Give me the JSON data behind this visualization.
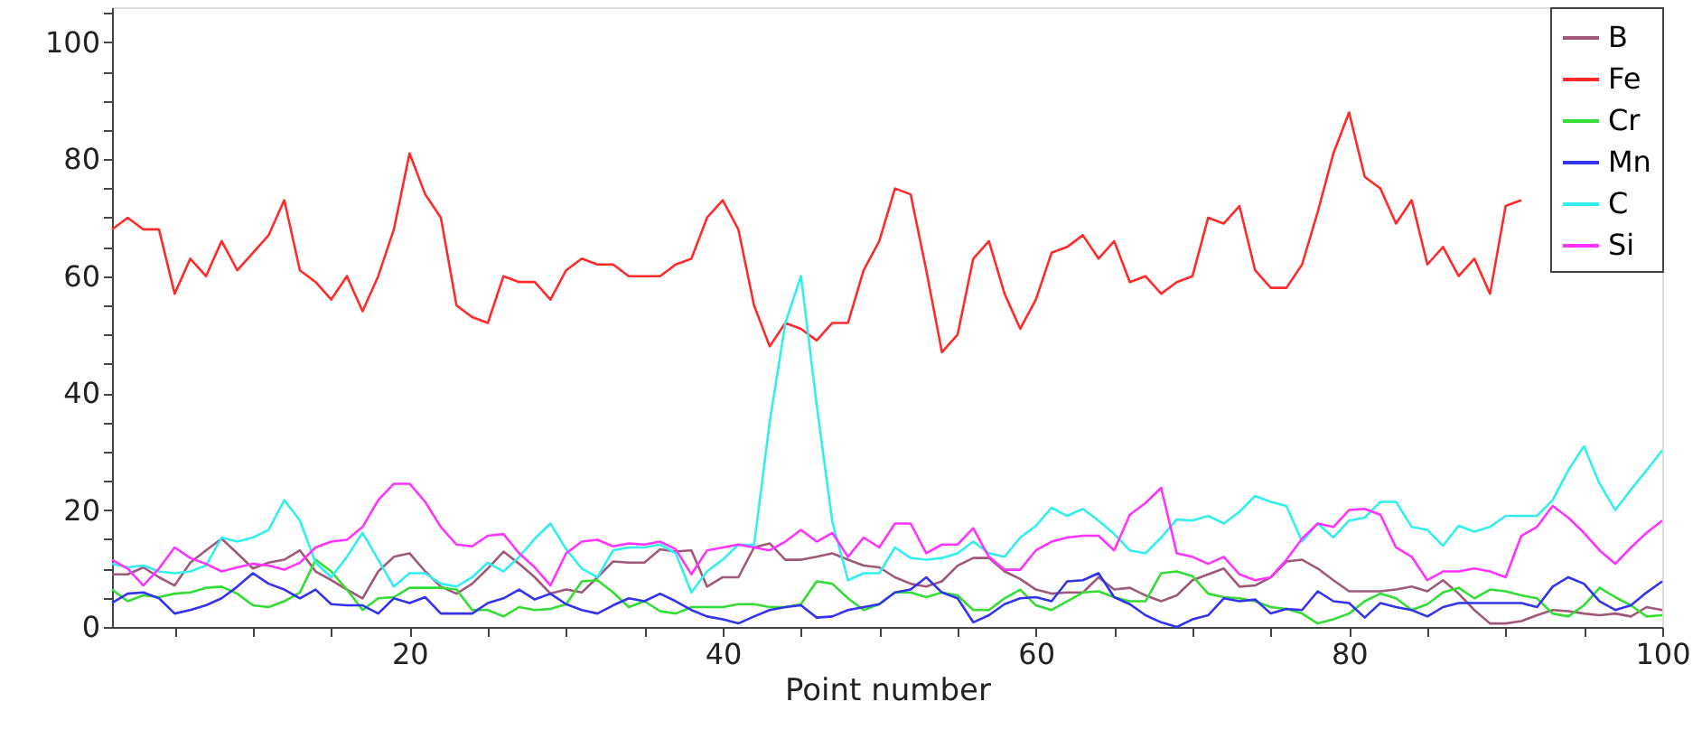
{
  "chart_data": {
    "type": "line",
    "xlabel": "Point number",
    "x": [
      1,
      2,
      3,
      4,
      5,
      6,
      7,
      8,
      9,
      10,
      11,
      12,
      13,
      14,
      15,
      16,
      17,
      18,
      19,
      20,
      21,
      22,
      23,
      24,
      25,
      26,
      27,
      28,
      29,
      30,
      31,
      32,
      33,
      34,
      35,
      36,
      37,
      38,
      39,
      40,
      41,
      42,
      43,
      44,
      45,
      46,
      47,
      48,
      49,
      50,
      51,
      52,
      53,
      54,
      55,
      56,
      57,
      58,
      59,
      60,
      61,
      62,
      63,
      64,
      65,
      66,
      67,
      68,
      69,
      70,
      71,
      72,
      73,
      74,
      75,
      76,
      77,
      78,
      79,
      80,
      81,
      82,
      83,
      84,
      85,
      86,
      87,
      88,
      89,
      90,
      91,
      92,
      93,
      94,
      95,
      96,
      97,
      98,
      99,
      100
    ],
    "xlim": [
      1,
      100
    ],
    "xticks": [
      {
        "value": 5,
        "label": null
      },
      {
        "value": 10,
        "label": null
      },
      {
        "value": 15,
        "label": null
      },
      20,
      {
        "value": 25,
        "label": null
      },
      {
        "value": 30,
        "label": null
      },
      {
        "value": 35,
        "label": null
      },
      40,
      {
        "value": 45,
        "label": null
      },
      {
        "value": 50,
        "label": null
      },
      {
        "value": 55,
        "label": null
      },
      60,
      {
        "value": 65,
        "label": null
      },
      {
        "value": 70,
        "label": null
      },
      {
        "value": 75,
        "label": null
      },
      80,
      {
        "value": 85,
        "label": null
      },
      {
        "value": 90,
        "label": null
      },
      {
        "value": 95,
        "label": null
      },
      100
    ],
    "ylim": [
      0,
      106
    ],
    "yticks": [
      0,
      {
        "value": 5,
        "label": null
      },
      {
        "value": 10,
        "label": null
      },
      {
        "value": 15,
        "label": null
      },
      20,
      {
        "value": 25,
        "label": null
      },
      {
        "value": 30,
        "label": null
      },
      {
        "value": 35,
        "label": null
      },
      40,
      {
        "value": 45,
        "label": null
      },
      {
        "value": 50,
        "label": null
      },
      {
        "value": 55,
        "label": null
      },
      60,
      {
        "value": 65,
        "label": null
      },
      {
        "value": 70,
        "label": null
      },
      {
        "value": 75,
        "label": null
      },
      80,
      {
        "value": 85,
        "label": null
      },
      {
        "value": 90,
        "label": null
      },
      {
        "value": 95,
        "label": null
      },
      100,
      {
        "value": 105,
        "label": null
      }
    ],
    "grid": false,
    "legend": "top right",
    "marker": "none",
    "line_style": "solid",
    "series": [
      {
        "name": "B",
        "color": "#a0587a",
        "values": [
          9,
          9,
          10.2,
          8.5,
          7.1,
          11,
          13.1,
          15.1,
          12.6,
          10,
          11,
          11.5,
          13.1,
          9.5,
          8,
          6.4,
          4.9,
          9.5,
          12,
          12.6,
          9.5,
          6.9,
          5.7,
          7.4,
          10,
          12.9,
          10.8,
          8.5,
          5.7,
          6.4,
          5.9,
          8.5,
          11.2,
          11,
          11,
          13.3,
          12.9,
          13.1,
          6.9,
          8.5,
          8.5,
          13.6,
          14.3,
          11.5,
          11.5,
          12,
          12.6,
          11.5,
          10.5,
          10.2,
          8.5,
          7.4,
          6.9,
          7.8,
          10.5,
          11.8,
          11.8,
          9.5,
          8.2,
          6.4,
          5.7,
          5.9,
          5.9,
          8.5,
          6.4,
          6.7,
          5.4,
          4.4,
          5.4,
          8,
          9,
          10,
          6.9,
          7.1,
          8.5,
          11.2,
          11.5,
          10,
          8,
          6.1,
          6.1,
          6.1,
          6.4,
          6.9,
          6.1,
          8,
          5.7,
          2.9,
          0.6,
          0.6,
          1,
          2,
          2.9,
          2.7,
          2.3,
          2,
          2.3,
          1.8,
          3.4,
          2.9
        ]
      },
      {
        "name": "Fe",
        "color": "#ff2a2a",
        "values": [
          68,
          70,
          68,
          68,
          57,
          63,
          60,
          66,
          61,
          64,
          67,
          73,
          61,
          59,
          56,
          60,
          54,
          60,
          68,
          81,
          74,
          70,
          55,
          53,
          52,
          60,
          59,
          59,
          56,
          61,
          63,
          62,
          62,
          60,
          60,
          60,
          62,
          63,
          70,
          73,
          68,
          55,
          48,
          52,
          51,
          49,
          52,
          52,
          61,
          66,
          75,
          74,
          61,
          47,
          50,
          63,
          66,
          57,
          51,
          56,
          64,
          65,
          67,
          63,
          66,
          59,
          60,
          57,
          59,
          60,
          70,
          69,
          72,
          61,
          58,
          58,
          62,
          71,
          81,
          88,
          77,
          75,
          69,
          73,
          62,
          65,
          60,
          63,
          57,
          72,
          73,
          null,
          null,
          null,
          null,
          null,
          null,
          null,
          null,
          null
        ]
      },
      {
        "name": "Cr",
        "color": "#33dd33",
        "values": [
          6.4,
          4.4,
          5.4,
          5.1,
          5.7,
          5.9,
          6.7,
          6.9,
          5.7,
          3.7,
          3.4,
          4.4,
          5.9,
          11.5,
          9.5,
          6.4,
          2.9,
          4.9,
          5.1,
          6.7,
          6.7,
          6.7,
          6.4,
          2.9,
          2.9,
          1.8,
          3.4,
          2.9,
          3.1,
          3.9,
          7.8,
          8,
          5.9,
          3.4,
          4.4,
          2.7,
          2.3,
          3.4,
          3.4,
          3.4,
          3.9,
          3.9,
          3.4,
          3.4,
          3.9,
          7.8,
          7.4,
          4.9,
          2.9,
          3.9,
          5.9,
          5.9,
          5.1,
          5.9,
          5.4,
          2.9,
          2.9,
          4.9,
          6.4,
          3.7,
          2.9,
          4.4,
          5.9,
          6.1,
          5.1,
          4.4,
          4.4,
          9.2,
          9.5,
          8.7,
          5.7,
          5.1,
          4.9,
          4.4,
          3.4,
          3.1,
          2.3,
          0.6,
          1.3,
          2.3,
          4.4,
          5.7,
          4.9,
          2.9,
          3.9,
          5.9,
          6.7,
          4.9,
          6.4,
          6.1,
          5.4,
          4.9,
          2.3,
          1.8,
          3.7,
          6.7,
          5.1,
          3.7,
          1.8,
          2
        ]
      },
      {
        "name": "Mn",
        "color": "#3333ee",
        "values": [
          4.1,
          5.7,
          5.9,
          4.9,
          2.3,
          2.9,
          3.7,
          4.9,
          6.9,
          9.2,
          7.4,
          6.4,
          4.9,
          6.4,
          3.9,
          3.7,
          3.7,
          2.3,
          4.9,
          4.1,
          5.1,
          2.3,
          2.3,
          2.3,
          4.1,
          4.9,
          6.4,
          4.7,
          5.7,
          3.9,
          2.9,
          2.3,
          3.7,
          4.9,
          4.4,
          5.7,
          4.4,
          2.9,
          1.8,
          1.3,
          0.6,
          1.8,
          2.9,
          3.4,
          3.7,
          1.6,
          1.8,
          2.9,
          3.4,
          3.9,
          5.9,
          6.4,
          8.5,
          5.9,
          4.9,
          0.8,
          2,
          3.9,
          4.9,
          5.1,
          4.4,
          7.8,
          8,
          9.2,
          5.1,
          3.9,
          2,
          0.8,
          0,
          1.3,
          2,
          4.9,
          4.4,
          4.7,
          2.3,
          3.1,
          2.9,
          6.1,
          4.4,
          4.1,
          1.6,
          4.1,
          3.4,
          2.9,
          1.8,
          3.4,
          4.1,
          4.1,
          4.1,
          4.1,
          4.1,
          3.4,
          6.9,
          8.5,
          7.4,
          4.4,
          2.9,
          3.7,
          5.9,
          7.8
        ]
      },
      {
        "name": "C",
        "color": "#33eeee",
        "values": [
          10.8,
          10.2,
          10.5,
          9.5,
          9.2,
          9.5,
          10.5,
          15.3,
          14.6,
          15.3,
          16.6,
          21.7,
          18.2,
          11,
          8.5,
          12,
          16.1,
          11.5,
          6.9,
          9.2,
          9.2,
          7.4,
          6.9,
          8.5,
          11,
          9.5,
          12,
          15.1,
          17.7,
          13.3,
          10,
          8.5,
          13.1,
          13.6,
          13.6,
          14.1,
          12.6,
          5.9,
          9.5,
          11.5,
          14.1,
          14,
          35,
          52,
          60,
          38,
          18,
          8,
          9.2,
          9.2,
          13.6,
          11.8,
          11.5,
          11.8,
          12.6,
          14.6,
          12.6,
          12,
          15.3,
          17.3,
          20.4,
          19,
          20.2,
          18.2,
          15.9,
          13.1,
          12.6,
          15.3,
          18.4,
          18.2,
          19,
          17.7,
          19.7,
          22.4,
          21.4,
          20.7,
          14.6,
          17.7,
          15.3,
          18.2,
          18.7,
          21.4,
          21.4,
          17.1,
          16.6,
          13.9,
          17.3,
          16.3,
          17.1,
          19,
          19,
          19,
          21.7,
          26.8,
          30.9,
          24.5,
          20,
          23.5,
          26.8,
          30.2
        ]
      },
      {
        "name": "Si",
        "color": "#ff33ff",
        "values": [
          11.5,
          10,
          7.1,
          10,
          13.6,
          11.8,
          10.8,
          9.5,
          10.2,
          10.8,
          10.5,
          9.8,
          11,
          13.6,
          14.6,
          14.9,
          17.1,
          21.7,
          24.5,
          24.5,
          21.4,
          17.1,
          14.1,
          13.8,
          15.6,
          15.9,
          12.6,
          10.2,
          7.1,
          12.6,
          14.6,
          14.9,
          13.8,
          14.3,
          14.1,
          14.6,
          13.3,
          9,
          13.1,
          13.6,
          14.1,
          13.6,
          13.1,
          14.6,
          16.6,
          14.6,
          16.1,
          12,
          15.3,
          13.6,
          17.7,
          17.7,
          12.6,
          14.1,
          14.1,
          16.9,
          12,
          9.8,
          9.8,
          13.1,
          14.6,
          15.3,
          15.6,
          15.6,
          13.1,
          19.2,
          21.2,
          23.8,
          12.6,
          12,
          10.8,
          12,
          9,
          8,
          8.5,
          11.5,
          15.1,
          17.7,
          17.1,
          20,
          20.2,
          19.2,
          13.6,
          12,
          8,
          9.5,
          9.5,
          10,
          9.5,
          8.5,
          15.6,
          17.1,
          20.7,
          18.7,
          16.1,
          13.1,
          10.8,
          13.6,
          16.1,
          18.2
        ]
      }
    ]
  }
}
